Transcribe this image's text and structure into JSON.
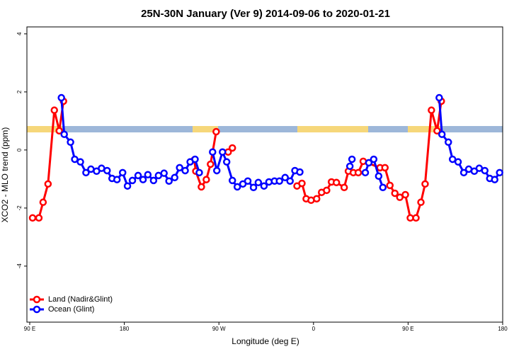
{
  "chart_data": {
    "type": "line",
    "title": "25N-30N January (Ver 9)   2014-09-06 to 2020-01-21",
    "xlabel": "Longitude (deg E)",
    "ylabel": "XCO2 - MLO trend (ppm)",
    "xlim": [
      87.3,
      540
    ],
    "ylim": [
      -5.93,
      4.24
    ],
    "xticks": [
      {
        "value": 90,
        "label": "90 E"
      },
      180,
      {
        "value": 270,
        "label": "90 W"
      },
      {
        "value": 360,
        "label": "0"
      },
      {
        "value": 450,
        "label": "90 E"
      },
      {
        "value": 540,
        "label": "180"
      }
    ],
    "yticks": [
      4,
      2,
      0,
      -2,
      -4
    ],
    "legend": "bottom-left",
    "series": [
      {
        "name": "Land (Nadir&Glint)",
        "color": "#ff0000",
        "x": [
          92.7,
          98.7,
          102.7,
          107.4,
          113.4,
          118.1,
          122.1,
          null,
          246.6,
          248,
          253.3,
          258,
          262,
          267.4,
          null,
          278.8,
          282.8,
          null,
          344.3,
          349,
          353,
          357.7,
          363,
          367.7,
          372.5,
          377.1,
          381.8,
          389.2,
          393.2,
          397.9,
          402.6,
          407.3,
          423.3,
          428,
          432.7,
          437.4,
          442.1,
          447.4,
          452.1,
          457.5,
          462.2,
          466.2,
          472.2,
          477.6,
          481.6
        ],
        "values": [
          -2.34,
          -2.34,
          -1.8,
          -1.17,
          1.37,
          0.66,
          1.68,
          null,
          -0.34,
          -0.73,
          -1.27,
          -1.02,
          -0.49,
          0.63,
          null,
          -0.07,
          0.07,
          null,
          -1.24,
          -1.15,
          -1.68,
          -1.73,
          -1.68,
          -1.46,
          -1.39,
          -1.1,
          -1.12,
          -1.29,
          -0.73,
          -0.78,
          -0.78,
          -0.39,
          -0.61,
          -0.61,
          -1.22,
          -1.49,
          -1.63,
          -1.54,
          -2.34,
          -2.34,
          -1.8,
          -1.17,
          1.37,
          0.66,
          1.68
        ]
      },
      {
        "name": "Ocean (Glint)",
        "color": "#0000ff",
        "x": [
          120.1,
          122.8,
          128.8,
          132.8,
          138.2,
          143.5,
          148.2,
          153.6,
          158.3,
          163.6,
          168.3,
          173,
          178.4,
          183,
          187.7,
          193.1,
          197.8,
          202.4,
          207.8,
          212.5,
          217.8,
          222.5,
          227.9,
          232.6,
          237.9,
          242.6,
          247.3,
          251.3,
          null,
          264,
          268,
          273.4,
          277.4,
          282.8,
          287.5,
          292.8,
          297.5,
          302.9,
          307.5,
          312.9,
          317.6,
          322.9,
          327.6,
          333,
          337.7,
          342.3,
          347,
          null,
          394.6,
          396.6,
          null,
          409.3,
          412.6,
          417.3,
          422,
          426,
          null,
          479.6,
          482.2,
          488.3,
          492.3,
          497.6,
          503,
          507.7,
          513,
          517.7,
          523,
          527.7,
          532.4,
          537.1
        ],
        "values": [
          1.8,
          0.54,
          0.27,
          -0.32,
          -0.41,
          -0.78,
          -0.66,
          -0.73,
          -0.63,
          -0.71,
          -0.98,
          -1.02,
          -0.78,
          -1.24,
          -1.05,
          -0.88,
          -1.02,
          -0.85,
          -1.05,
          -0.88,
          -0.8,
          -1.07,
          -0.95,
          -0.61,
          -0.71,
          -0.41,
          -0.32,
          -0.78,
          null,
          -0.07,
          -0.71,
          -0.07,
          -0.41,
          -1.05,
          -1.27,
          -1.17,
          -1.07,
          -1.29,
          -1.12,
          -1.24,
          -1.1,
          -1.07,
          -1.07,
          -0.95,
          -1.07,
          -0.71,
          -0.76,
          null,
          -0.56,
          -0.32,
          null,
          -0.78,
          -0.44,
          -0.32,
          -0.9,
          -1.29,
          null,
          1.8,
          0.54,
          0.27,
          -0.32,
          -0.41,
          -0.78,
          -0.66,
          -0.73,
          -0.63,
          -0.71,
          -0.98,
          -1.02,
          -0.78
        ]
      }
    ]
  }
}
